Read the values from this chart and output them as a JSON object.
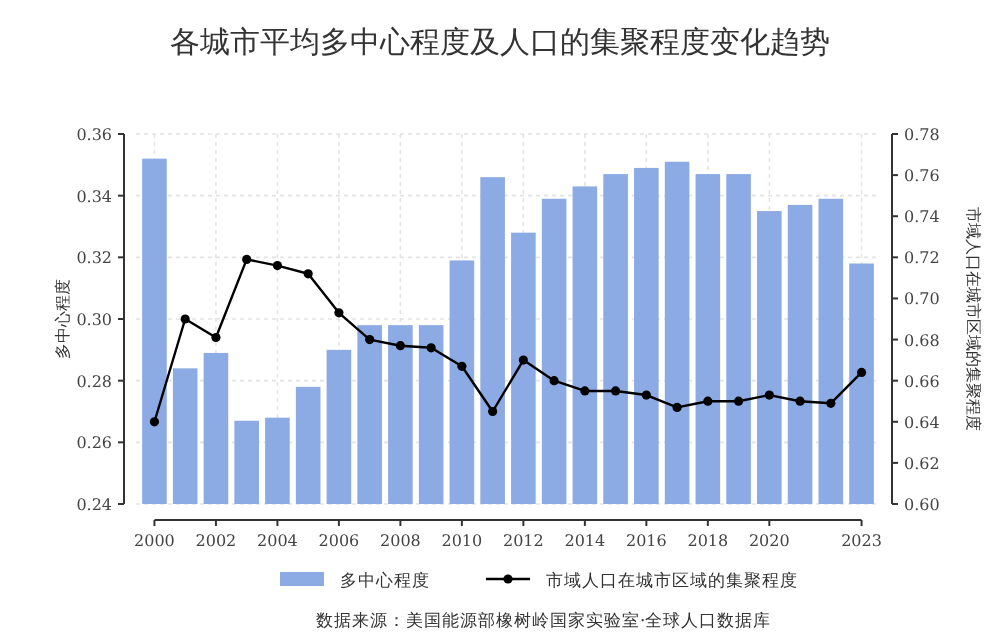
{
  "chart_data": {
    "type": "bar",
    "title": "各城市平均多中心程度及人口的集聚程度变化趋势",
    "ylabel": "多中心程度",
    "y2label": "市域人口在城市区域的集聚程度",
    "x": [
      2000,
      2001,
      2002,
      2003,
      2004,
      2005,
      2006,
      2007,
      2008,
      2009,
      2010,
      2011,
      2012,
      2013,
      2014,
      2015,
      2016,
      2017,
      2018,
      2019,
      2020,
      2021,
      2022,
      2023
    ],
    "series": [
      {
        "name": "多中心程度",
        "color": "#8caae3",
        "values": [
          0.352,
          0.284,
          0.289,
          0.267,
          0.268,
          0.278,
          0.29,
          0.298,
          0.298,
          0.298,
          0.319,
          0.346,
          0.328,
          0.339,
          0.343,
          0.347,
          0.349,
          0.351,
          0.347,
          0.347,
          0.335,
          0.337,
          0.339,
          0.318
        ]
      },
      {
        "name": "市域人口在城市区域的集聚程度",
        "type": "line",
        "axis": "y2",
        "color": "#000000",
        "marker": "circle",
        "line_style": "solid",
        "values": [
          0.64,
          0.69,
          0.681,
          0.719,
          0.716,
          0.712,
          0.693,
          0.68,
          0.677,
          0.676,
          0.667,
          0.645,
          0.67,
          0.66,
          0.655,
          0.655,
          0.653,
          0.647,
          0.65,
          0.65,
          0.653,
          0.65,
          0.649,
          0.664
        ]
      }
    ],
    "xlim": [
      1999.4,
      2023.6
    ],
    "xticks": [
      2000,
      2002,
      2004,
      2006,
      2008,
      2010,
      2012,
      2014,
      2016,
      2018,
      2020,
      2023
    ],
    "ylim": [
      0.24,
      0.36
    ],
    "yticks": [
      0.24,
      0.26,
      0.28,
      {
        "value": 0.3,
        "label": "0.30"
      },
      0.32,
      0.34,
      0.36
    ],
    "y2lim": [
      0.6,
      0.78
    ],
    "y2ticks": [
      {
        "value": 0.6,
        "label": "0.60"
      },
      0.62,
      0.64,
      0.66,
      0.68,
      {
        "value": 0.7,
        "label": "0.70"
      },
      0.72,
      0.74,
      0.76,
      0.78
    ],
    "grid": true,
    "legend": "bottom",
    "annotations": [
      "数据来源：美国能源部橡树岭国家实验室·全球人口数据库"
    ]
  }
}
